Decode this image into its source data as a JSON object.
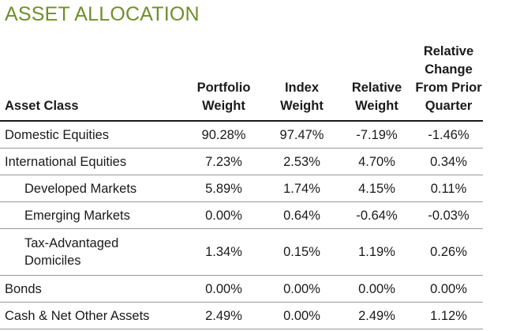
{
  "title": "ASSET ALLOCATION",
  "table": {
    "headers": {
      "asset_class": "Asset Class",
      "portfolio_weight": [
        "Portfolio",
        "Weight"
      ],
      "index_weight": [
        "Index",
        "Weight"
      ],
      "relative_weight": [
        "Relative",
        "Weight"
      ],
      "relative_change": [
        "Relative",
        "Change",
        "From Prior",
        "Quarter"
      ]
    },
    "rows": [
      {
        "asset": "Domestic Equities",
        "portfolio": "90.28%",
        "index": "97.47%",
        "relative": "-7.19%",
        "change": "-1.46%"
      },
      {
        "asset": "International Equities",
        "portfolio": "7.23%",
        "index": "2.53%",
        "relative": "4.70%",
        "change": "0.34%"
      },
      {
        "asset": "Developed Markets",
        "portfolio": "5.89%",
        "index": "1.74%",
        "relative": "4.15%",
        "change": "0.11%"
      },
      {
        "asset": "Emerging Markets",
        "portfolio": "0.00%",
        "index": "0.64%",
        "relative": "-0.64%",
        "change": "-0.03%"
      },
      {
        "asset_lines": [
          "Tax-Advantaged",
          "Domiciles"
        ],
        "portfolio": "1.34%",
        "index": "0.15%",
        "relative": "1.19%",
        "change": "0.26%"
      },
      {
        "asset": "Bonds",
        "portfolio": "0.00%",
        "index": "0.00%",
        "relative": "0.00%",
        "change": "0.00%"
      },
      {
        "asset": "Cash & Net Other Assets",
        "portfolio": "2.49%",
        "index": "0.00%",
        "relative": "2.49%",
        "change": "1.12%"
      }
    ]
  }
}
